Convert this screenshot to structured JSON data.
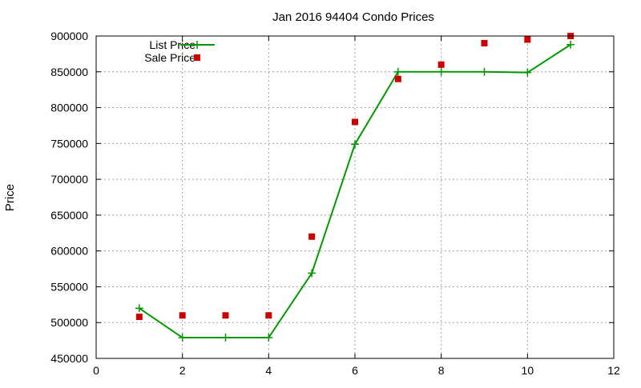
{
  "chart_data": {
    "type": "line",
    "title": "Jan 2016 94404 Condo Prices",
    "xlabel": "",
    "ylabel": "Price",
    "xlim": [
      0,
      12
    ],
    "ylim": [
      450000,
      900000
    ],
    "x_ticks": [
      0,
      2,
      4,
      6,
      8,
      10,
      12
    ],
    "y_ticks": [
      450000,
      500000,
      550000,
      600000,
      650000,
      700000,
      750000,
      800000,
      850000,
      900000
    ],
    "grid": true,
    "legend_position": "top-left",
    "series": [
      {
        "name": "List Price",
        "style": "line+cross",
        "color": "#009900",
        "x": [
          1,
          2,
          3,
          4,
          5,
          6,
          7,
          8,
          9,
          10,
          11
        ],
        "values": [
          520000,
          479000,
          479000,
          479000,
          569000,
          749000,
          850000,
          850000,
          850000,
          849000,
          888000
        ]
      },
      {
        "name": "Sale Price",
        "style": "square",
        "color": "#cc0000",
        "x": [
          1,
          2,
          3,
          4,
          5,
          6,
          7,
          8,
          9,
          10,
          11
        ],
        "values": [
          508000,
          510000,
          510000,
          510000,
          620000,
          780000,
          840000,
          860000,
          890000,
          895000,
          900000
        ]
      }
    ]
  }
}
